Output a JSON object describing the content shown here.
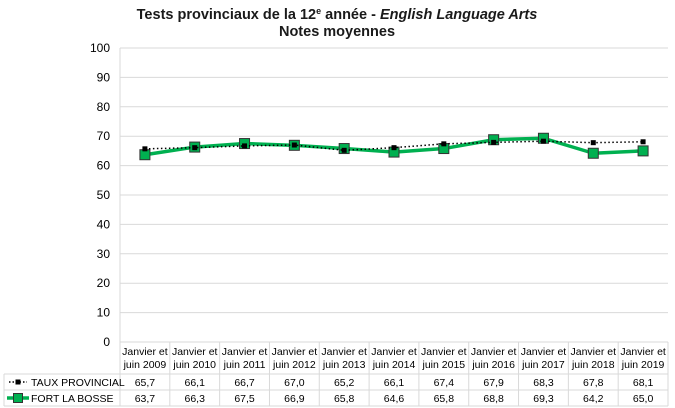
{
  "chart_data": {
    "type": "line",
    "title_part1": "Tests provinciaux de la 12",
    "title_sup": "e",
    "title_part2": " année - ",
    "title_italic": "English Language Arts",
    "subtitle": "Notes moyennes",
    "ylim": [
      0,
      100
    ],
    "yticks": [
      "0",
      "10",
      "20",
      "30",
      "40",
      "50",
      "60",
      "70",
      "80",
      "90",
      "100"
    ],
    "categories": [
      [
        "Janvier et",
        "juin 2009"
      ],
      [
        "Janvier et",
        "juin 2010"
      ],
      [
        "Janvier et",
        "juin 2011"
      ],
      [
        "Janvier et",
        "juin 2012"
      ],
      [
        "Janvier et",
        "juin 2013"
      ],
      [
        "Janvier et",
        "juin 2014"
      ],
      [
        "Janvier et",
        "juin 2015"
      ],
      [
        "Janvier et",
        "juin 2016"
      ],
      [
        "Janvier et",
        "juin 2017"
      ],
      [
        "Janvier et",
        "juin 2018"
      ],
      [
        "Janvier et",
        "juin 2019"
      ]
    ],
    "series": [
      {
        "name": "TAUX PROVINCIAL",
        "values": [
          65.7,
          66.1,
          66.7,
          67.0,
          65.2,
          66.1,
          67.4,
          67.9,
          68.3,
          67.8,
          68.1
        ],
        "labels": [
          "65,7",
          "66,1",
          "66,7",
          "67,0",
          "65,2",
          "66,1",
          "67,4",
          "67,9",
          "68,3",
          "67,8",
          "68,1"
        ],
        "color": "#000000",
        "style": "dotted-square"
      },
      {
        "name": "FORT LA BOSSE",
        "values": [
          63.7,
          66.3,
          67.5,
          66.9,
          65.8,
          64.6,
          65.8,
          68.8,
          69.3,
          64.2,
          65.0
        ],
        "labels": [
          "63,7",
          "66,3",
          "67,5",
          "66,9",
          "65,8",
          "64,6",
          "65,8",
          "68,8",
          "69,3",
          "64,2",
          "65,0"
        ],
        "color": "#00b050",
        "style": "thick-square"
      }
    ],
    "grid": true,
    "legend": "data-table"
  }
}
